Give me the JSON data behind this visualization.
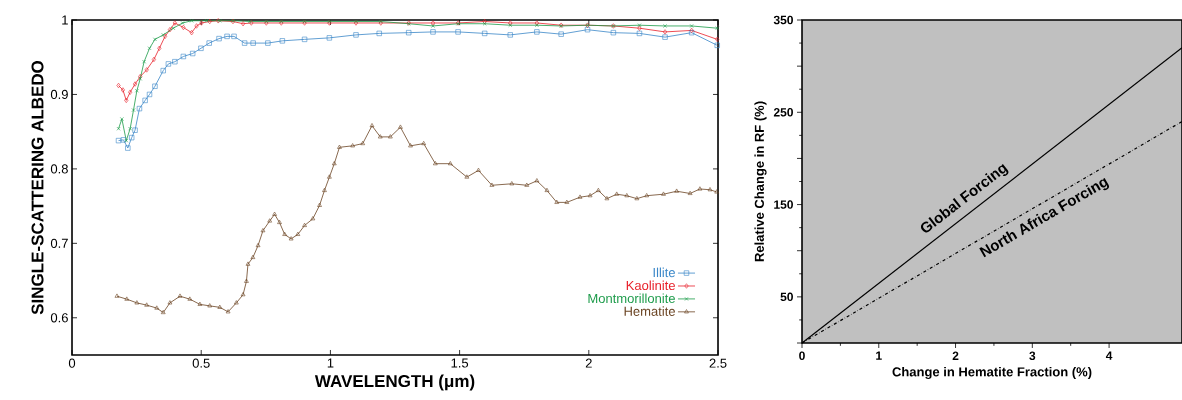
{
  "chart_data": [
    {
      "type": "line",
      "xlabel": "WAVELENGTH (μm)",
      "ylabel": "SINGLE-SCATTERING ALBEDO",
      "xlim": [
        0,
        2.5
      ],
      "ylim": [
        0.55,
        1.0
      ],
      "xticks": [
        0,
        0.5,
        1,
        1.5,
        2,
        2.5
      ],
      "yticks": [
        0.6,
        0.7,
        0.8,
        0.9,
        1
      ],
      "grid": false,
      "legend": "bottom right",
      "line_style": "solid",
      "series": [
        {
          "name": "Illite",
          "color": "#3a87c8",
          "marker": "square",
          "x": [
            0.18,
            0.199,
            0.216,
            0.231,
            0.244,
            0.261,
            0.283,
            0.3,
            0.321,
            0.353,
            0.373,
            0.398,
            0.431,
            0.467,
            0.499,
            0.531,
            0.569,
            0.6,
            0.627,
            0.668,
            0.701,
            0.758,
            0.814,
            0.9,
            0.996,
            1.099,
            1.189,
            1.303,
            1.397,
            1.494,
            1.597,
            1.696,
            1.799,
            1.893,
            1.995,
            2.095,
            2.196,
            2.295,
            2.398,
            2.497
          ],
          "values": [
            0.838,
            0.839,
            0.828,
            0.842,
            0.852,
            0.881,
            0.892,
            0.9,
            0.911,
            0.932,
            0.941,
            0.944,
            0.951,
            0.955,
            0.962,
            0.969,
            0.975,
            0.978,
            0.978,
            0.969,
            0.969,
            0.969,
            0.972,
            0.974,
            0.976,
            0.98,
            0.982,
            0.983,
            0.984,
            0.984,
            0.982,
            0.98,
            0.984,
            0.981,
            0.987,
            0.983,
            0.982,
            0.977,
            0.983,
            0.966
          ]
        },
        {
          "name": "Kaolinite",
          "color": "#e8202a",
          "marker": "diamond",
          "x": [
            0.18,
            0.197,
            0.21,
            0.225,
            0.244,
            0.264,
            0.289,
            0.317,
            0.338,
            0.36,
            0.379,
            0.398,
            0.431,
            0.463,
            0.482,
            0.501,
            0.533,
            0.566,
            0.623,
            0.662,
            0.694,
            0.752,
            0.81,
            0.9,
            0.996,
            1.099,
            1.195,
            1.303,
            1.397,
            1.494,
            1.597,
            1.696,
            1.799,
            1.893,
            1.995,
            2.095,
            2.196,
            2.295,
            2.398,
            2.497
          ],
          "values": [
            0.912,
            0.906,
            0.892,
            0.903,
            0.914,
            0.924,
            0.933,
            0.947,
            0.962,
            0.978,
            0.987,
            0.996,
            0.99,
            0.983,
            0.992,
            0.996,
            0.998,
            0.999,
            0.998,
            0.995,
            0.996,
            0.996,
            0.996,
            0.996,
            0.996,
            0.996,
            0.996,
            0.996,
            0.996,
            0.996,
            0.998,
            0.996,
            0.996,
            0.993,
            0.993,
            0.992,
            0.989,
            0.984,
            0.986,
            0.974
          ]
        },
        {
          "name": "Montmorillonite",
          "color": "#1a9a48",
          "marker": "cross",
          "x": [
            0.18,
            0.193,
            0.21,
            0.225,
            0.238,
            0.251,
            0.264,
            0.279,
            0.3,
            0.321,
            0.353,
            0.392,
            0.428,
            0.463,
            0.521,
            0.572,
            0.623,
            0.688,
            0.752,
            0.81,
            0.9,
            0.996,
            1.099,
            1.195,
            1.303,
            1.397,
            1.494,
            1.597,
            1.696,
            1.799,
            1.893,
            1.995,
            2.095,
            2.196,
            2.295,
            2.398,
            2.497
          ],
          "values": [
            0.854,
            0.867,
            0.838,
            0.854,
            0.879,
            0.905,
            0.921,
            0.944,
            0.962,
            0.974,
            0.98,
            0.989,
            0.996,
            0.999,
            0.999,
            0.999,
            0.999,
            0.998,
            0.998,
            0.998,
            0.998,
            0.998,
            0.998,
            0.998,
            0.995,
            0.992,
            0.995,
            0.995,
            0.993,
            0.993,
            0.992,
            0.993,
            0.992,
            0.993,
            0.992,
            0.992,
            0.989
          ]
        },
        {
          "name": "Hematite",
          "color": "#6b4423",
          "marker": "triangle",
          "x": [
            0.174,
            0.212,
            0.251,
            0.289,
            0.328,
            0.353,
            0.379,
            0.418,
            0.456,
            0.495,
            0.533,
            0.572,
            0.604,
            0.636,
            0.662,
            0.675,
            0.681,
            0.7,
            0.72,
            0.739,
            0.765,
            0.784,
            0.803,
            0.823,
            0.848,
            0.874,
            0.9,
            0.932,
            0.958,
            0.977,
            0.996,
            1.015,
            1.035,
            1.086,
            1.125,
            1.161,
            1.193,
            1.232,
            1.271,
            1.31,
            1.361,
            1.406,
            1.464,
            1.528,
            1.573,
            1.625,
            1.702,
            1.76,
            1.799,
            1.838,
            1.876,
            1.915,
            1.966,
            2.005,
            2.037,
            2.07,
            2.108,
            2.147,
            2.186,
            2.224,
            2.289,
            2.34,
            2.392,
            2.43,
            2.469,
            2.495
          ],
          "values": [
            0.629,
            0.625,
            0.62,
            0.617,
            0.613,
            0.607,
            0.62,
            0.629,
            0.625,
            0.618,
            0.616,
            0.614,
            0.608,
            0.62,
            0.631,
            0.649,
            0.672,
            0.681,
            0.697,
            0.717,
            0.73,
            0.739,
            0.728,
            0.712,
            0.706,
            0.712,
            0.724,
            0.733,
            0.751,
            0.771,
            0.789,
            0.807,
            0.829,
            0.831,
            0.834,
            0.858,
            0.843,
            0.843,
            0.856,
            0.831,
            0.834,
            0.807,
            0.807,
            0.789,
            0.798,
            0.778,
            0.78,
            0.778,
            0.784,
            0.771,
            0.755,
            0.755,
            0.762,
            0.764,
            0.771,
            0.76,
            0.766,
            0.764,
            0.76,
            0.764,
            0.766,
            0.77,
            0.767,
            0.773,
            0.772,
            0.769
          ]
        }
      ]
    },
    {
      "type": "line",
      "xlabel": "Change in Hematite Fraction (%)",
      "ylabel": "Relative Change in RF (%)",
      "xlim": [
        0,
        4.95
      ],
      "ylim": [
        0,
        350
      ],
      "xticks": [
        0,
        1,
        2,
        3,
        4
      ],
      "yticks": [
        {
          "value": 0,
          "label": null
        },
        50,
        {
          "value": 100,
          "label": null
        },
        150,
        {
          "value": 200,
          "label": null
        },
        250,
        {
          "value": 300,
          "label": null
        },
        350
      ],
      "grid": false,
      "legend": false,
      "marker": "none",
      "series": [
        {
          "name": "Global Forcing",
          "color": "#000000",
          "line_style": "solid",
          "x": [
            0,
            4.95
          ],
          "values": [
            0,
            320
          ]
        },
        {
          "name": "North Africa Forcing",
          "color": "#000000",
          "line_style": "dashdot",
          "x": [
            0,
            4.95
          ],
          "values": [
            0,
            240
          ]
        }
      ]
    }
  ]
}
